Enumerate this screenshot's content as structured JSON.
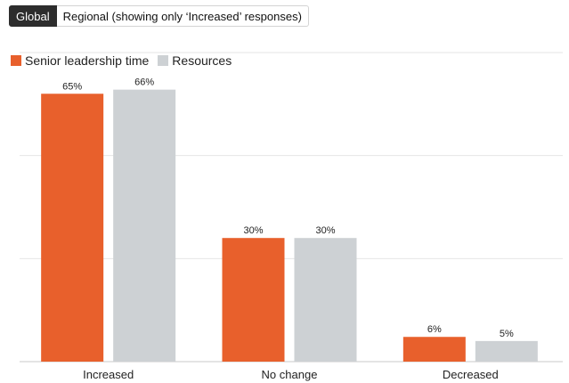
{
  "tabs": {
    "global_label": "Global",
    "regional_label": "Regional (showing only ‘Increased’ responses)"
  },
  "colors": {
    "series_1": "#e8602c",
    "series_2": "#cdd1d4",
    "gridline": "#e6e6e6",
    "axis": "#c8c8c8"
  },
  "chart_data": {
    "type": "bar",
    "categories": [
      "Increased",
      "No change",
      "Decreased"
    ],
    "series": [
      {
        "name": "Senior leadership time",
        "values": [
          65,
          30,
          6
        ],
        "labels": [
          "65%",
          "30%",
          "6%"
        ]
      },
      {
        "name": "Resources",
        "values": [
          66,
          30,
          5
        ],
        "labels": [
          "66%",
          "30%",
          "5%"
        ]
      }
    ],
    "ylim": [
      0,
      75
    ],
    "grid": true,
    "legend_position": "top-left"
  }
}
